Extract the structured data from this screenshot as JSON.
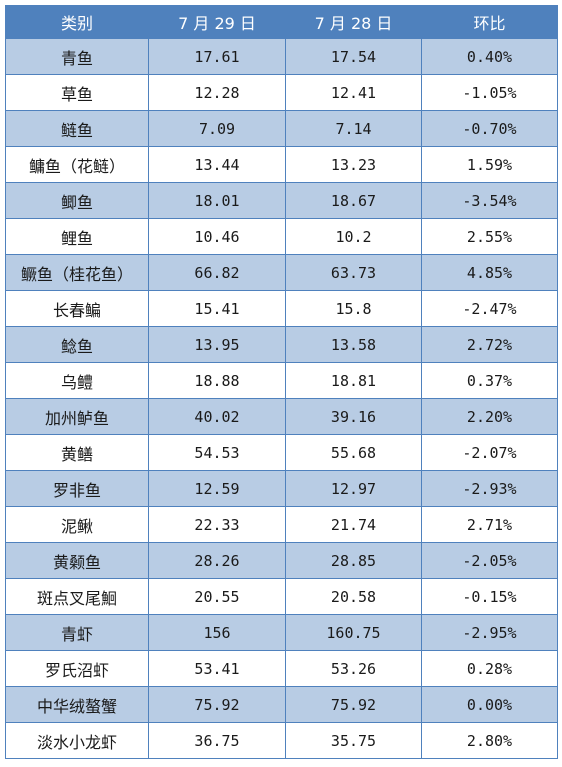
{
  "headers": [
    "类别",
    "7 月 29 日",
    "7 月 28 日",
    "环比"
  ],
  "rows": [
    [
      "青鱼",
      "17.61",
      "17.54",
      "0.40%"
    ],
    [
      "草鱼",
      "12.28",
      "12.41",
      "-1.05%"
    ],
    [
      "鲢鱼",
      "7.09",
      "7.14",
      "-0.70%"
    ],
    [
      "鳙鱼（花鲢）",
      "13.44",
      "13.23",
      "1.59%"
    ],
    [
      "鲫鱼",
      "18.01",
      "18.67",
      "-3.54%"
    ],
    [
      "鲤鱼",
      "10.46",
      "10.2",
      "2.55%"
    ],
    [
      "鳜鱼（桂花鱼）",
      "66.82",
      "63.73",
      "4.85%"
    ],
    [
      "长春鳊",
      "15.41",
      "15.8",
      "-2.47%"
    ],
    [
      "鲶鱼",
      "13.95",
      "13.58",
      "2.72%"
    ],
    [
      "乌鳢",
      "18.88",
      "18.81",
      "0.37%"
    ],
    [
      "加州鲈鱼",
      "40.02",
      "39.16",
      "2.20%"
    ],
    [
      "黄鳝",
      "54.53",
      "55.68",
      "-2.07%"
    ],
    [
      "罗非鱼",
      "12.59",
      "12.97",
      "-2.93%"
    ],
    [
      "泥鳅",
      "22.33",
      "21.74",
      "2.71%"
    ],
    [
      "黄颡鱼",
      "28.26",
      "28.85",
      "-2.05%"
    ],
    [
      "斑点叉尾鮰",
      "20.55",
      "20.58",
      "-0.15%"
    ],
    [
      "青虾",
      "156",
      "160.75",
      "-2.95%"
    ],
    [
      "罗氏沼虾",
      "53.41",
      "53.26",
      "0.28%"
    ],
    [
      "中华绒螯蟹",
      "75.92",
      "75.92",
      "0.00%"
    ],
    [
      "淡水小龙虾",
      "36.75",
      "35.75",
      "2.80%"
    ]
  ]
}
